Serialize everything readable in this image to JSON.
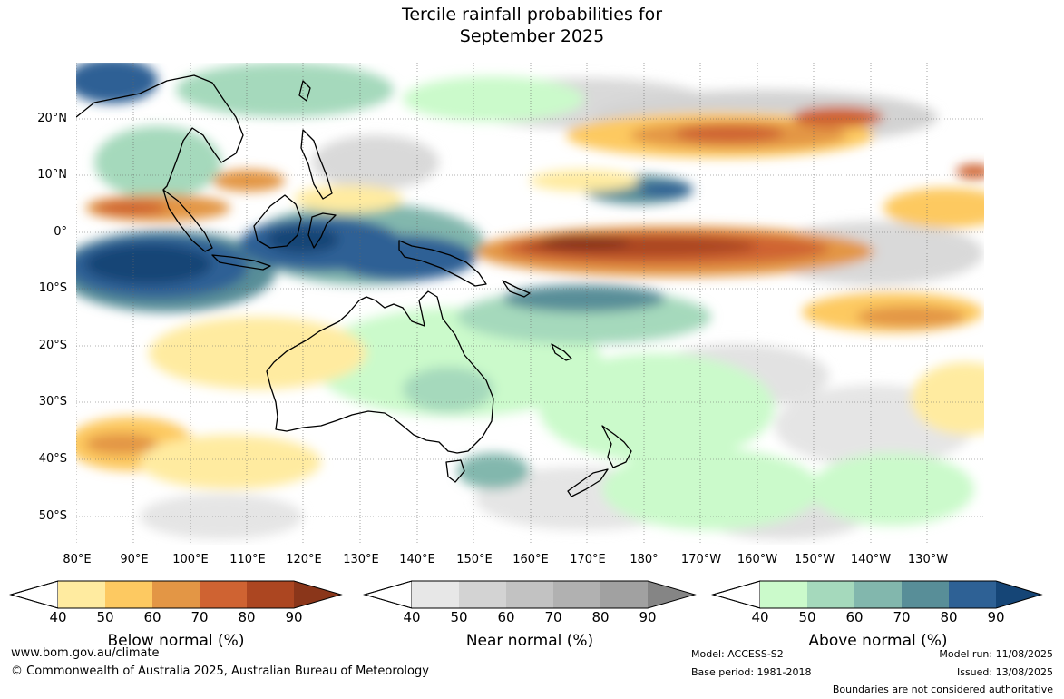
{
  "title_line1": "Tercile rainfall probabilities for",
  "title_line2": "September 2025",
  "lat_labels": [
    "20°N",
    "10°N",
    "0°",
    "10°S",
    "20°S",
    "30°S",
    "40°S",
    "50°S"
  ],
  "lon_labels": [
    "80°E",
    "90°E",
    "100°E",
    "110°E",
    "120°E",
    "130°E",
    "140°E",
    "150°E",
    "160°E",
    "170°E",
    "180°",
    "170°W",
    "160°W",
    "150°W",
    "140°W",
    "130°W"
  ],
  "colorbars": {
    "below": {
      "title": "Below normal (%)",
      "ticks": [
        "40",
        "50",
        "60",
        "70",
        "80",
        "90"
      ],
      "colors": [
        "#ffeba0",
        "#fdc961",
        "#e39645",
        "#cf6332",
        "#ac4621",
        "#8a361a"
      ]
    },
    "near": {
      "title": "Near normal (%)",
      "ticks": [
        "40",
        "50",
        "60",
        "70",
        "80",
        "90"
      ],
      "colors": [
        "#e7e7e7",
        "#d3d3d3",
        "#c2c2c2",
        "#b1b1b1",
        "#a1a1a1",
        "#858585"
      ]
    },
    "above": {
      "title": "Above normal (%)",
      "ticks": [
        "40",
        "50",
        "60",
        "70",
        "80",
        "90"
      ],
      "colors": [
        "#cbfacb",
        "#a5d9bc",
        "#82b7ad",
        "#588e98",
        "#2e6195",
        "#154576"
      ]
    }
  },
  "footer": {
    "website": "www.bom.gov.au/climate",
    "copyright": "© Commonwealth of Australia 2025, Australian Bureau of Meteorology",
    "model": "Model: ACCESS-S2",
    "base_period": "Base period: 1981-2018",
    "model_run": "Model run: 11/08/2025",
    "issued": "Issued: 13/08/2025",
    "boundaries": "Boundaries are not considered authoritative"
  }
}
